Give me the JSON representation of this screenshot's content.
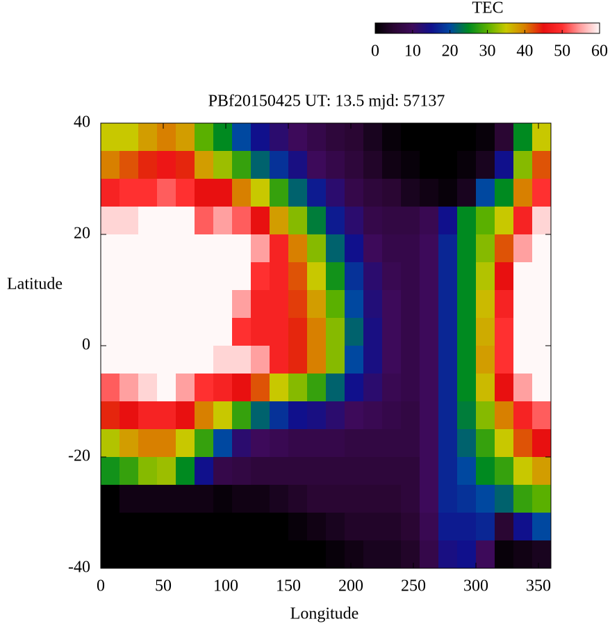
{
  "chart_data": {
    "type": "heatmap",
    "title": "PBf20150425  UT: 13.5  mjd: 57137",
    "x_label": "Longitude",
    "y_label": "Latitude",
    "xlim": [
      0,
      360
    ],
    "ylim": [
      -40,
      40
    ],
    "xticks": [
      0,
      50,
      100,
      150,
      200,
      250,
      300,
      350
    ],
    "yticks": [
      -40,
      -20,
      0,
      20,
      40
    ],
    "colorbar": {
      "label": "TEC",
      "lim": [
        0,
        60
      ],
      "ticks": [
        0,
        10,
        20,
        30,
        40,
        50,
        60
      ]
    },
    "colormap": [
      "#000000",
      "#2a0633",
      "#3d0a5a",
      "#10108c",
      "#0048a0",
      "#008a20",
      "#5ab000",
      "#c8c800",
      "#d88000",
      "#e81010",
      "#ff3030",
      "#ffa0a0",
      "#fff8f8"
    ],
    "x": [
      7.5,
      22.5,
      37.5,
      52.5,
      67.5,
      82.5,
      97.5,
      112.5,
      127.5,
      142.5,
      157.5,
      172.5,
      187.5,
      202.5,
      217.5,
      232.5,
      247.5,
      262.5,
      277.5,
      292.5,
      307.5,
      322.5,
      337.5,
      352.5
    ],
    "y": [
      37.5,
      32.5,
      27.5,
      22.5,
      17.5,
      12.5,
      7.5,
      2.5,
      -2.5,
      -7.5,
      -12.5,
      -17.5,
      -22.5,
      -27.5,
      -32.5,
      -37.5
    ],
    "values": [
      [
        35,
        40,
        48,
        58,
        60,
        60,
        60,
        60,
        60,
        52,
        44,
        34,
        26,
        0,
        0,
        0
      ],
      [
        35,
        42,
        50,
        58,
        60,
        60,
        60,
        60,
        60,
        55,
        45,
        38,
        28,
        2,
        0,
        0
      ],
      [
        38,
        44,
        50,
        60,
        60,
        60,
        60,
        60,
        60,
        58,
        48,
        40,
        32,
        2,
        0,
        0
      ],
      [
        40,
        46,
        52,
        60,
        60,
        60,
        60,
        60,
        60,
        60,
        48,
        40,
        33,
        2,
        0,
        0
      ],
      [
        38,
        44,
        50,
        60,
        60,
        60,
        60,
        60,
        60,
        55,
        45,
        35,
        25,
        2,
        0,
        0
      ],
      [
        30,
        38,
        45,
        52,
        60,
        60,
        60,
        60,
        60,
        50,
        40,
        28,
        15,
        2,
        0,
        0
      ],
      [
        25,
        33,
        45,
        55,
        60,
        60,
        60,
        60,
        58,
        48,
        35,
        20,
        8,
        1,
        0,
        0
      ],
      [
        20,
        28,
        40,
        52,
        60,
        60,
        55,
        50,
        58,
        45,
        28,
        12,
        7,
        2,
        0,
        0
      ],
      [
        15,
        22,
        35,
        45,
        55,
        50,
        48,
        48,
        55,
        42,
        22,
        10,
        6,
        2,
        0,
        0
      ],
      [
        12,
        18,
        28,
        38,
        48,
        48,
        48,
        48,
        48,
        35,
        18,
        9,
        6,
        3,
        0,
        0
      ],
      [
        10,
        14,
        22,
        32,
        40,
        42,
        43,
        44,
        44,
        32,
        15,
        8,
        6,
        4,
        1,
        0
      ],
      [
        8,
        10,
        16,
        24,
        32,
        35,
        38,
        40,
        40,
        28,
        14,
        8,
        6,
        5,
        2,
        0
      ],
      [
        6,
        8,
        12,
        16,
        22,
        26,
        30,
        32,
        32,
        22,
        12,
        8,
        6,
        5,
        3,
        1
      ],
      [
        5,
        6,
        8,
        12,
        15,
        18,
        20,
        22,
        20,
        15,
        10,
        7,
        6,
        5,
        4,
        2
      ],
      [
        3,
        4,
        6,
        8,
        10,
        12,
        13,
        14,
        14,
        12,
        9,
        7,
        6,
        5,
        4,
        3
      ],
      [
        1,
        2,
        5,
        7,
        8,
        9,
        10,
        10,
        10,
        9,
        8,
        7,
        6,
        5,
        4,
        3
      ],
      [
        0,
        1,
        3,
        7,
        8,
        8,
        8,
        8,
        8,
        8,
        7,
        7,
        6,
        6,
        5,
        4
      ],
      [
        0,
        0,
        2,
        9,
        10,
        10,
        10,
        10,
        10,
        10,
        10,
        10,
        10,
        10,
        9,
        8
      ],
      [
        0,
        0,
        1,
        15,
        17,
        17,
        17,
        17,
        17,
        17,
        17,
        17,
        17,
        17,
        16,
        14
      ],
      [
        0,
        1,
        3,
        25,
        25,
        25,
        25,
        25,
        25,
        25,
        24,
        22,
        20,
        18,
        16,
        15
      ],
      [
        1,
        3,
        20,
        30,
        32,
        34,
        36,
        37,
        38,
        36,
        32,
        28,
        25,
        20,
        17,
        10
      ],
      [
        5,
        15,
        25,
        35,
        42,
        45,
        48,
        50,
        50,
        45,
        40,
        35,
        28,
        22,
        5,
        1
      ],
      [
        25,
        32,
        40,
        48,
        55,
        60,
        60,
        60,
        60,
        55,
        48,
        42,
        35,
        28,
        15,
        2
      ],
      [
        35,
        42,
        50,
        58,
        60,
        60,
        60,
        60,
        60,
        60,
        52,
        45,
        38,
        30,
        20,
        3
      ]
    ]
  }
}
